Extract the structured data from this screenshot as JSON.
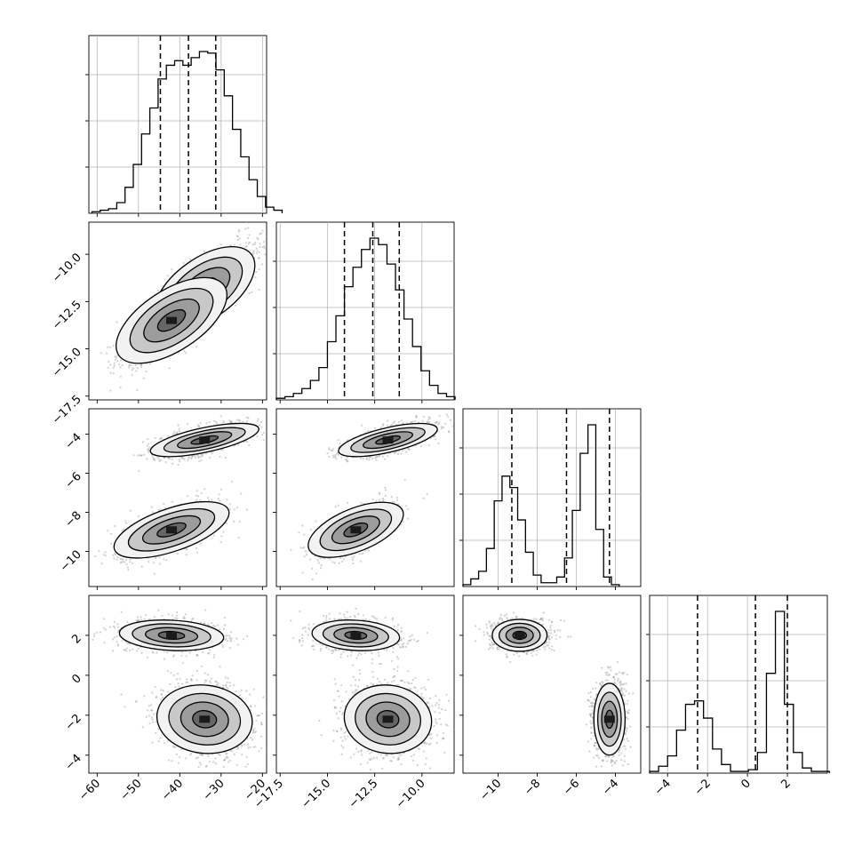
{
  "chart_data": {
    "type": "corner",
    "colors": {
      "hist": "#000000",
      "grid": "#b0b0b0",
      "points": "#9a9a9a",
      "contour": "#000000"
    },
    "grid": true,
    "params": [
      {
        "range": [
          -62,
          -19
        ],
        "ticks": [
          -60,
          -50,
          -40,
          -30,
          -20
        ],
        "tick_labels": [
          "−60",
          "−50",
          "−40",
          "−30",
          "−20"
        ],
        "quantiles": [
          -44.7,
          -37.9,
          -31.3
        ]
      },
      {
        "range": [
          -17.7,
          -8.3
        ],
        "ticks": [
          -17.5,
          -15.0,
          -12.5,
          -10.0
        ],
        "tick_labels": [
          "−17.5",
          "−15.0",
          "−12.5",
          "−10.0"
        ],
        "quantiles": [
          -14.1,
          -12.6,
          -11.2
        ]
      },
      {
        "range": [
          -11.8,
          -2.7
        ],
        "ticks": [
          -10,
          -8,
          -6,
          -4
        ],
        "tick_labels": [
          "−10",
          "−8",
          "−6",
          "−4"
        ],
        "quantiles": [
          -9.3,
          -6.5,
          -4.3
        ]
      },
      {
        "range": [
          -4.9,
          4.0
        ],
        "ticks": [
          -4,
          -2,
          0,
          2
        ],
        "tick_labels": [
          "−4",
          "−2",
          "0",
          "2"
        ],
        "quantiles": [
          -2.5,
          0.4,
          2.0
        ]
      }
    ],
    "histograms": [
      {
        "edges_start": -61.25,
        "bin_width": 2.0,
        "counts": [
          1,
          2,
          3,
          7,
          17,
          32,
          52,
          69,
          88,
          97,
          100,
          97,
          102,
          106,
          105,
          94,
          77,
          55,
          37,
          22,
          11,
          4,
          2
        ]
      },
      {
        "edges_start": -17.7,
        "bin_width": 0.45,
        "counts": [
          1,
          2,
          4,
          7,
          12,
          20,
          36,
          52,
          70,
          82,
          93,
          100,
          96,
          84,
          68,
          50,
          33,
          18,
          9,
          4,
          2
        ]
      },
      {
        "edges_start": -11.8,
        "bin_width": 0.4,
        "counts": [
          1,
          4,
          8,
          20,
          45,
          58,
          52,
          35,
          18,
          6,
          2,
          2,
          5,
          15,
          40,
          70,
          85,
          30,
          5,
          1
        ]
      },
      {
        "edges_start": -4.9,
        "bin_width": 0.45,
        "counts": [
          1,
          4,
          10,
          25,
          40,
          42,
          32,
          14,
          5,
          1,
          1,
          2,
          12,
          58,
          94,
          40,
          12,
          3,
          1,
          1
        ]
      }
    ],
    "modes": [
      {
        "weight": 0.62,
        "mean": [
          -34.0,
          -11.8,
          -4.3,
          -2.2
        ],
        "sd": [
          5.5,
          1.1,
          0.4,
          0.9
        ]
      },
      {
        "weight": 0.38,
        "mean": [
          -42.0,
          -13.5,
          -8.9,
          2.0
        ],
        "sd": [
          6.0,
          1.1,
          0.7,
          0.4
        ]
      }
    ],
    "correlations": [
      [
        0,
        1,
        0.78
      ],
      [
        0,
        2,
        0.62
      ],
      [
        1,
        2,
        0.62
      ],
      [
        0,
        3,
        -0.15
      ],
      [
        1,
        3,
        -0.15
      ],
      [
        2,
        3,
        0.0
      ]
    ]
  }
}
